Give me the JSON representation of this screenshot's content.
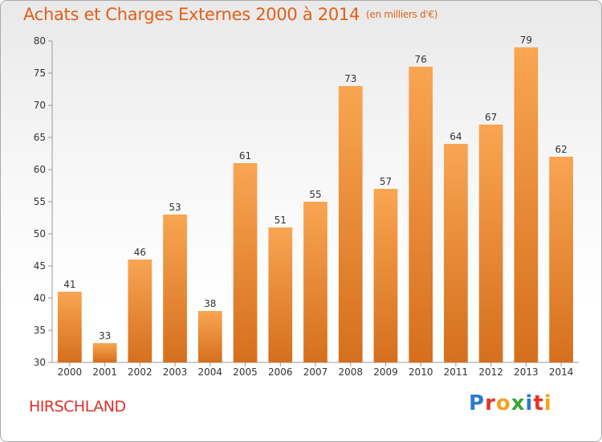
{
  "header": {
    "title": "Achats et Charges Externes 2000 à 2014",
    "unit": "(en milliers d'€)"
  },
  "footer": {
    "town": "HIRSCHLAND",
    "logo_letters": [
      "P",
      "r",
      "o",
      "x",
      "i",
      "t",
      "i"
    ]
  },
  "colors": {
    "title": "#e06018",
    "town": "#e0302a",
    "bar_light": "#f7a04e",
    "bar_dark": "#d8701c"
  },
  "chart_data": {
    "type": "bar",
    "title": "Achats et Charges Externes 2000 à 2014",
    "categories": [
      "2000",
      "2001",
      "2002",
      "2003",
      "2004",
      "2005",
      "2006",
      "2007",
      "2008",
      "2009",
      "2010",
      "2011",
      "2012",
      "2013",
      "2014"
    ],
    "values": [
      41,
      33,
      46,
      53,
      38,
      61,
      51,
      55,
      73,
      57,
      76,
      64,
      67,
      79,
      62
    ],
    "ylim": [
      30,
      80
    ],
    "yticks": [
      30,
      35,
      40,
      45,
      50,
      55,
      60,
      65,
      70,
      75,
      80
    ],
    "grid": false,
    "data_labels": true
  }
}
